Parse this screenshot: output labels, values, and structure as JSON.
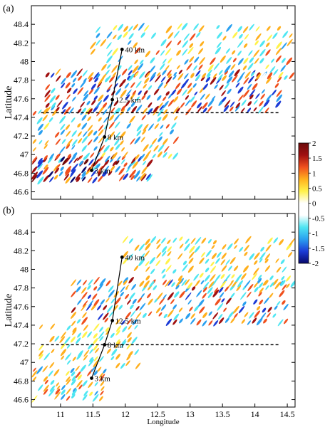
{
  "chart_data": [
    {
      "type": "heatmap",
      "panel_label": "(a)",
      "ylabel": "Latitude",
      "xlabel": "",
      "xlim": [
        10.55,
        14.62
      ],
      "ylim": [
        46.52,
        48.6
      ],
      "yticks": [
        "46.6",
        "46.8",
        "47",
        "47.2",
        "47.4",
        "47.6",
        "47.8",
        "48",
        "48.2",
        "48.4"
      ],
      "ytick_values": [
        46.6,
        46.8,
        47.0,
        47.2,
        47.4,
        47.6,
        47.8,
        48.0,
        48.2,
        48.4
      ],
      "xticks": [],
      "profile": [
        {
          "lon": 11.48,
          "lat": 46.83,
          "label": "3 km"
        },
        {
          "lon": 11.68,
          "lat": 47.19,
          "label": "8 km"
        },
        {
          "lon": 11.8,
          "lat": 47.59,
          "label": "12.5 km"
        },
        {
          "lon": 11.95,
          "lat": 48.13,
          "label": "40 km"
        }
      ],
      "dashed_line": {
        "lon_start": 10.7,
        "lon_end": 14.38,
        "lat": 47.45
      },
      "wave_bands": [
        {
          "lat_south": 46.72,
          "lat_north": 46.98,
          "lon_start": 10.6,
          "lon_end": 12.4,
          "amp": 1.9
        },
        {
          "lat_south": 46.95,
          "lat_north": 47.5,
          "lon_start": 10.6,
          "lon_end": 12.8,
          "amp": 1.3
        },
        {
          "lat_south": 47.45,
          "lat_north": 47.9,
          "lon_start": 10.8,
          "lon_end": 14.4,
          "amp": 1.8
        },
        {
          "lat_south": 47.8,
          "lat_north": 48.4,
          "lon_start": 11.5,
          "lon_end": 14.6,
          "amp": 1.1
        }
      ]
    },
    {
      "type": "heatmap",
      "panel_label": "(b)",
      "ylabel": "Latitude",
      "xlabel": "Longitude",
      "xlim": [
        10.55,
        14.62
      ],
      "ylim": [
        46.52,
        48.6
      ],
      "yticks": [
        "46.6",
        "46.8",
        "47",
        "47.2",
        "47.4",
        "47.6",
        "47.8",
        "48",
        "48.2",
        "48.4"
      ],
      "ytick_values": [
        46.6,
        46.8,
        47.0,
        47.2,
        47.4,
        47.6,
        47.8,
        48.0,
        48.2,
        48.4
      ],
      "xticks": [
        "11",
        "11.5",
        "12",
        "12.5",
        "13",
        "13.5",
        "14",
        "14.5"
      ],
      "xtick_values": [
        11,
        11.5,
        12,
        12.5,
        13,
        13.5,
        14,
        14.5
      ],
      "profile": [
        {
          "lon": 11.48,
          "lat": 46.83,
          "label": "3 km"
        },
        {
          "lon": 11.68,
          "lat": 47.19,
          "label": "8 km"
        },
        {
          "lon": 11.8,
          "lat": 47.45,
          "label": "12.5 km"
        },
        {
          "lon": 11.95,
          "lat": 48.13,
          "label": "40 km"
        }
      ],
      "dashed_line": {
        "lon_start": 10.7,
        "lon_end": 14.38,
        "lat": 47.19
      },
      "wave_bands": [
        {
          "lat_south": 46.6,
          "lat_north": 46.95,
          "lon_start": 10.6,
          "lon_end": 11.7,
          "amp": 1.2
        },
        {
          "lat_south": 46.95,
          "lat_north": 47.4,
          "lon_start": 10.7,
          "lon_end": 12.2,
          "amp": 0.9
        },
        {
          "lat_south": 47.4,
          "lat_north": 47.9,
          "lon_start": 11.2,
          "lon_end": 14.5,
          "amp": 1.5
        },
        {
          "lat_south": 47.8,
          "lat_north": 48.35,
          "lon_start": 12.0,
          "lon_end": 14.6,
          "amp": 1.0
        }
      ]
    }
  ],
  "colorbar": {
    "range": [
      -2,
      2
    ],
    "ticks": [
      "2",
      "1.5",
      "1",
      "0.5",
      "0",
      "-0.5",
      "-1",
      "-1.5",
      "-2"
    ],
    "tick_values": [
      2,
      1.5,
      1,
      0.5,
      0,
      -0.5,
      -1,
      -1.5,
      -2
    ],
    "colors": [
      "#08086b",
      "#1c3bd6",
      "#2aa0f0",
      "#4fe6f2",
      "#ffffff",
      "#ffffff",
      "#fff24a",
      "#ffb01e",
      "#f0501e",
      "#a01010",
      "#6b0a0a"
    ]
  }
}
